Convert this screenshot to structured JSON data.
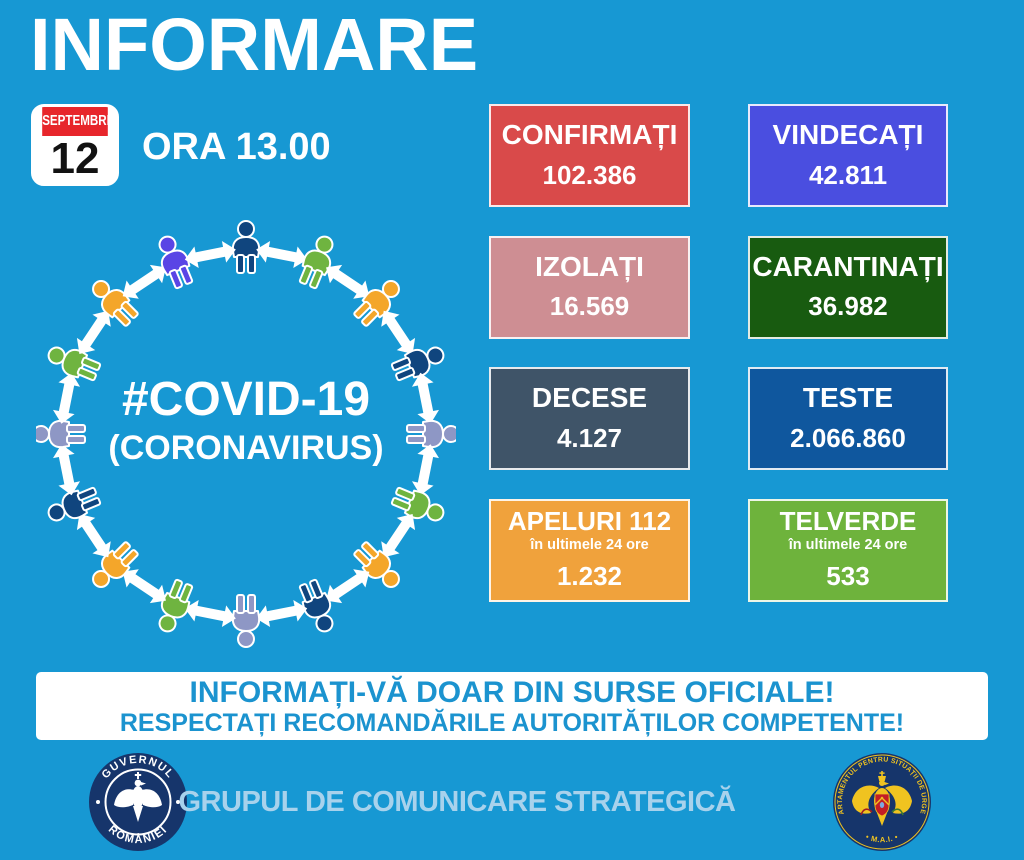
{
  "colors": {
    "background": "#1798D3",
    "calendar_red": "#E7262B",
    "notice_text": "#1B93CF",
    "footer_text": "#A8D2EC",
    "seal_navy": "#16356B",
    "seal_gold": "#F0C320",
    "shield_red": "#C41E25",
    "arrow_white": "#FFFFFF"
  },
  "header": {
    "title": "INFORMARE",
    "time": "ORA 13.00",
    "calendar": {
      "month": "SEPTEMBRIE",
      "day": "12"
    }
  },
  "covid": {
    "hashtag": "#COVID-19",
    "subtitle": "(CORONAVIRUS)",
    "people_colors": [
      "#10457E",
      "#6FB440",
      "#F4A62A",
      "#10457E",
      "#8E97C5",
      "#6FB440",
      "#F4A62A",
      "#10457E",
      "#8E97C5",
      "#6FB440",
      "#F4A62A",
      "#10457E",
      "#8E97C5",
      "#6FB440",
      "#F4A62A",
      "#5A45E5"
    ]
  },
  "stats": [
    {
      "label": "CONFIRMAȚI",
      "value": "102.386",
      "bg": "#D94A4A"
    },
    {
      "label": "VINDECAȚI",
      "value": "42.811",
      "bg": "#4A4EE0"
    },
    {
      "label": "IZOLAȚI",
      "value": "16.569",
      "bg": "#CE8E93"
    },
    {
      "label": "CARANTINAȚI",
      "value": "36.982",
      "bg": "#185B10"
    },
    {
      "label": "DECESE",
      "value": "4.127",
      "bg": "#3F5468"
    },
    {
      "label": "TESTE",
      "value": "2.066.860",
      "bg": "#0F579E"
    },
    {
      "label": "APELURI 112",
      "sublabel": "în ultimele 24 ore",
      "value": "1.232",
      "bg": "#F0A23C"
    },
    {
      "label": "TELVERDE",
      "sublabel": "în ultimele 24 ore",
      "value": "533",
      "bg": "#6EB33C"
    }
  ],
  "notice": {
    "line1": "INFORMAȚI-VĂ DOAR DIN SURSE OFICIALE!",
    "line2": "RESPECTAȚI RECOMANDĂRILE AUTORITĂȚILOR COMPETENTE!"
  },
  "footer": {
    "text": "GRUPUL DE COMUNICARE STRATEGICĂ",
    "gov_seal": {
      "top_text": "GUVERNUL",
      "bottom_text": "ROMÂNIEI"
    },
    "dsu_seal": {
      "around_text": "DEPARTAMENTUL PENTRU SITUAȚII DE URGENȚĂ",
      "bottom_text": "• M.A.I. •"
    }
  }
}
